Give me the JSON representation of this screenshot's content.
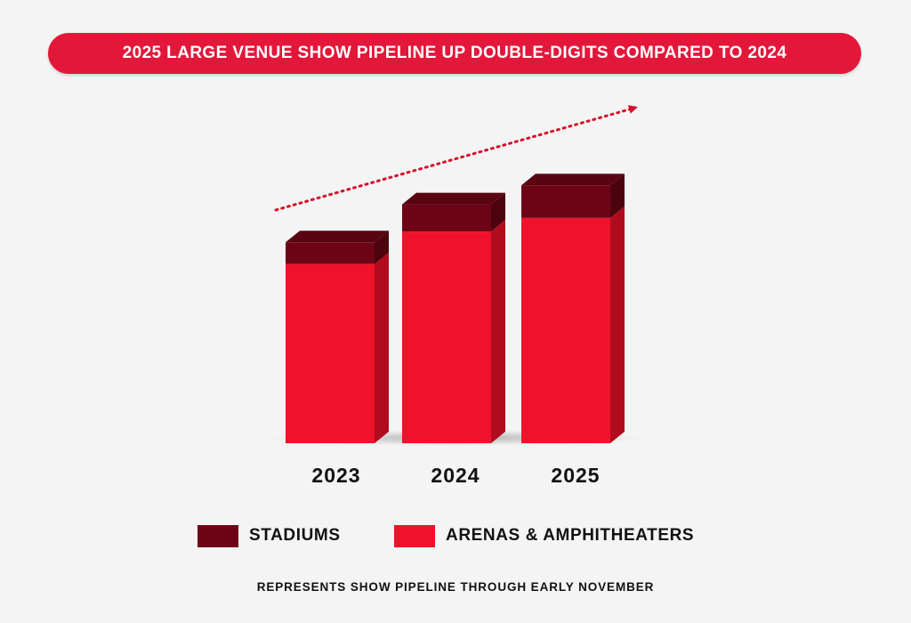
{
  "title": "2025 LARGE VENUE SHOW PIPELINE UP DOUBLE-DIGITS COMPARED TO 2024",
  "footnote": "REPRESENTS SHOW PIPELINE THROUGH EARLY NOVEMBER",
  "colors": {
    "banner": "#e3173a",
    "arenas": "#f0122a",
    "stadiums": "#6e0516",
    "trend_arrow": "#d4102a"
  },
  "legend": [
    {
      "label": "STADIUMS",
      "color": "#6e0516"
    },
    {
      "label": "ARENAS & AMPHITHEATERS",
      "color": "#f0122a"
    }
  ],
  "chart_data": {
    "type": "bar",
    "stacked": true,
    "categories": [
      "2023",
      "2024",
      "2025"
    ],
    "series": [
      {
        "name": "ARENAS & AMPHITHEATERS",
        "values": [
          66,
          78,
          83
        ]
      },
      {
        "name": "STADIUMS",
        "values": [
          8,
          10,
          12
        ]
      }
    ],
    "ylim": [
      0,
      100
    ],
    "grid": false,
    "legend_position": "bottom",
    "trend_arrow": "up-right"
  }
}
